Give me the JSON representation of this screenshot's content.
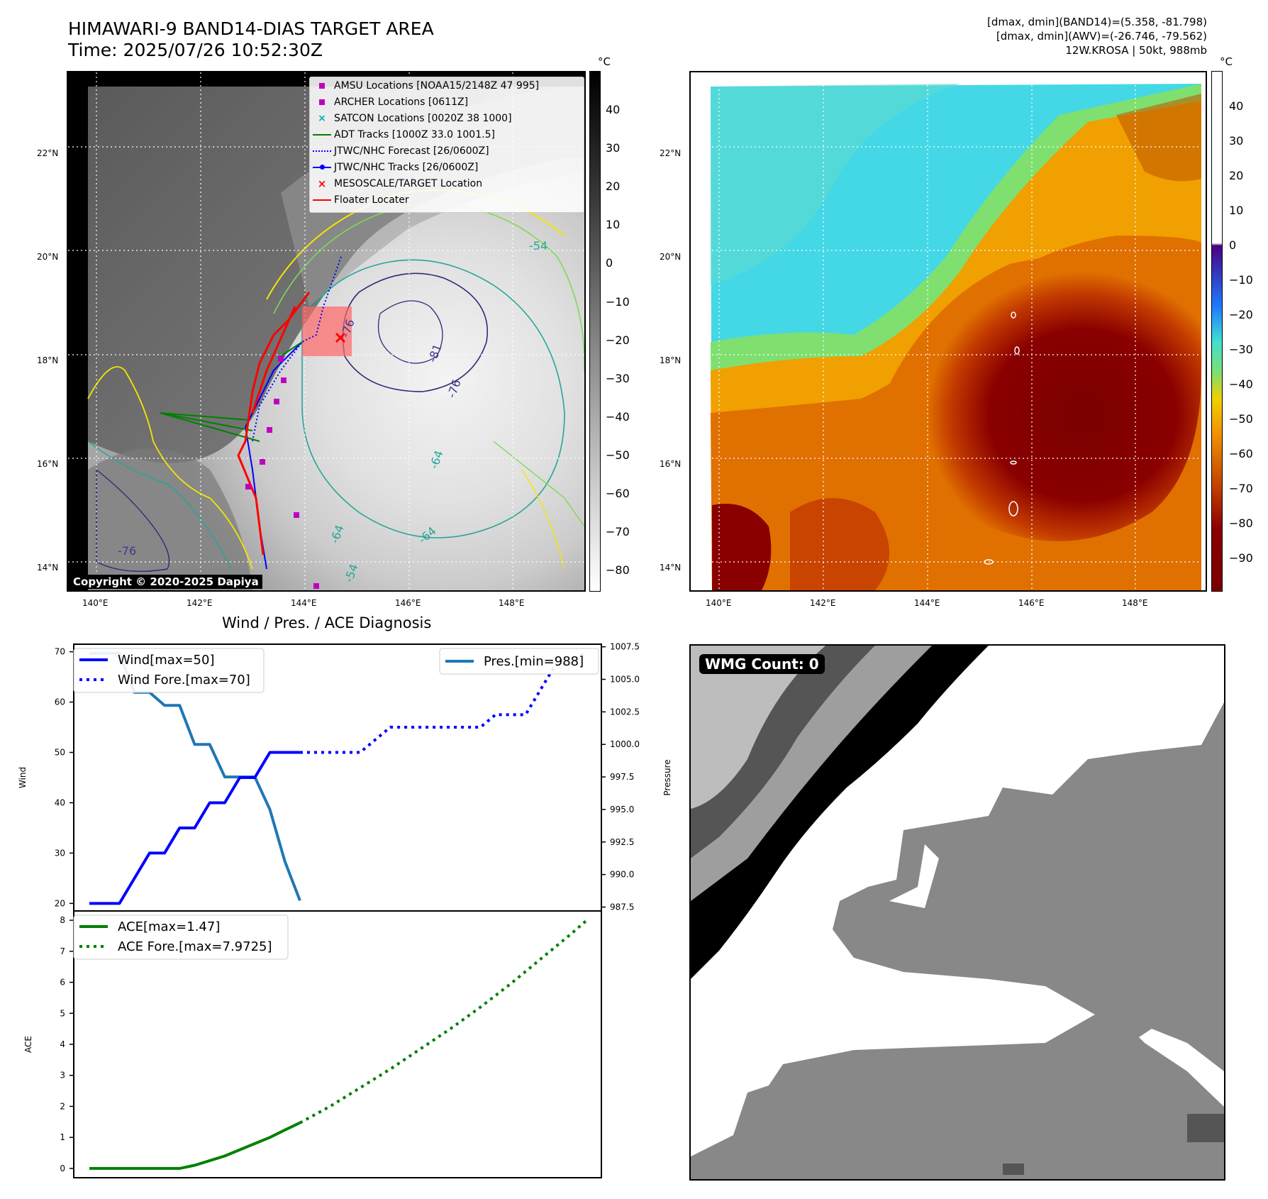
{
  "header": {
    "title_line1": "HIMAWARI-9 BAND14-DIAS TARGET AREA",
    "title_line2": "Time: 2025/07/26 10:52:30Z",
    "info_line1": "[dmax, dmin](BAND14)=(5.358, -81.798)",
    "info_line2": "[dmax, dmin](AWV)=(-26.746, -79.562)",
    "info_line3": "12W.KROSA | 50kt, 988mb"
  },
  "map_left": {
    "lat_labels": [
      "22°N",
      "20°N",
      "18°N",
      "16°N",
      "14°N"
    ],
    "lon_labels": [
      "140°E",
      "142°E",
      "144°E",
      "146°E",
      "148°E"
    ],
    "contour_labels": [
      "-54",
      "-76",
      "-81",
      "-76",
      "-64",
      "-64",
      "-64",
      "-54",
      "-76"
    ],
    "copyright": "Copyright © 2020-2025 Dapiya",
    "legend": [
      {
        "label": "AMSU Locations [NOAA15/2148Z 47 995]",
        "symbol": "square",
        "color": "#c000c0"
      },
      {
        "label": "ARCHER Locations [0611Z]",
        "symbol": "square",
        "color": "#c000c0"
      },
      {
        "label": "SATCON Locations [0020Z 38 1000]",
        "symbol": "x",
        "color": "#00b0b0"
      },
      {
        "label": "ADT Tracks [1000Z 33.0 1001.5]",
        "symbol": "line",
        "color": "#008000"
      },
      {
        "label": "JTWC/NHC Forecast [26/0600Z]",
        "symbol": "dotted",
        "color": "#0000ff"
      },
      {
        "label": "JTWC/NHC Tracks [26/0600Z]",
        "symbol": "line-dot",
        "color": "#0000ff"
      },
      {
        "label": "MESOSCALE/TARGET Location",
        "symbol": "x",
        "color": "#ff0000"
      },
      {
        "label": "Floater Locater",
        "symbol": "line",
        "color": "#ff0000"
      }
    ],
    "colorbar_unit": "°C",
    "colorbar_ticks": [
      "40",
      "30",
      "20",
      "10",
      "0",
      "−10",
      "−20",
      "−30",
      "−40",
      "−50",
      "−60",
      "−70",
      "−80"
    ]
  },
  "map_right": {
    "lat_labels": [
      "22°N",
      "20°N",
      "18°N",
      "16°N",
      "14°N"
    ],
    "lon_labels": [
      "140°E",
      "142°E",
      "144°E",
      "146°E",
      "148°E"
    ],
    "colorbar_unit": "°C",
    "colorbar_ticks": [
      "40",
      "30",
      "20",
      "10",
      "0",
      "−10",
      "−20",
      "−30",
      "−40",
      "−50",
      "−60",
      "−70",
      "−80",
      "−90"
    ]
  },
  "wmg": {
    "badge": "WMG Count: 0"
  },
  "chart_data": [
    {
      "type": "line",
      "title": "Wind / Pres. / ACE Diagnosis",
      "ylabel": "Wind",
      "y2label": "Pressure",
      "ylim": [
        18.5,
        71.5
      ],
      "y2lim": [
        987.2,
        1007.7
      ],
      "yticks": [
        "70",
        "60",
        "50",
        "40",
        "30",
        "20"
      ],
      "y2ticks": [
        "1007.5",
        "1005.0",
        "1002.5",
        "1000.0",
        "997.5",
        "995.0",
        "992.5",
        "990.0",
        "987.5"
      ],
      "series": [
        {
          "name": "Wind[max=50]",
          "axis": "left",
          "style": "solid",
          "color": "#0000ff",
          "x": [
            0,
            1,
            2,
            3,
            4,
            5,
            6,
            7,
            8,
            9,
            10,
            11,
            12,
            13,
            14
          ],
          "values": [
            20,
            20,
            20,
            25,
            30,
            30,
            35,
            35,
            40,
            40,
            45,
            45,
            50,
            50,
            50
          ]
        },
        {
          "name": "Wind Fore.[max=70]",
          "axis": "left",
          "style": "dotted",
          "color": "#0000ff",
          "x": [
            14,
            15,
            16,
            17,
            18,
            19,
            20,
            21,
            22,
            23,
            24,
            25,
            26,
            27,
            28,
            29,
            30,
            31,
            32,
            33
          ],
          "values": [
            50,
            50,
            50,
            50,
            50,
            52.5,
            55,
            55,
            55,
            55,
            55,
            55,
            55,
            57.5,
            57.5,
            57.5,
            62.5,
            67.5,
            67.5,
            70
          ]
        },
        {
          "name": "Pres.[min=988]",
          "axis": "right",
          "style": "solid",
          "color": "#1f77b4",
          "x": [
            0,
            1,
            2,
            3,
            4,
            5,
            6,
            7,
            8,
            9,
            10,
            11,
            12,
            13,
            14
          ],
          "values": [
            1007,
            1007,
            1007,
            1004,
            1004,
            1003,
            1003,
            1000,
            1000,
            997.5,
            997.5,
            997.5,
            995,
            991,
            988
          ]
        }
      ]
    },
    {
      "type": "line",
      "ylabel": "ACE",
      "ylim": [
        -0.3,
        8.3
      ],
      "yticks": [
        "8",
        "7",
        "6",
        "5",
        "4",
        "3",
        "2",
        "1",
        "0"
      ],
      "series": [
        {
          "name": "ACE[max=1.47]",
          "style": "solid",
          "color": "#008000",
          "x": [
            0,
            1,
            2,
            3,
            4,
            5,
            6,
            7,
            8,
            9,
            10,
            11,
            12,
            13,
            14
          ],
          "values": [
            0,
            0,
            0,
            0,
            0,
            0,
            0,
            0.1,
            0.25,
            0.4,
            0.6,
            0.8,
            1.0,
            1.24,
            1.47
          ]
        },
        {
          "name": "ACE Fore.[max=7.9725]",
          "style": "dotted",
          "color": "#008000",
          "x": [
            14,
            16,
            18,
            20,
            22,
            24,
            26,
            28,
            30,
            32,
            33
          ],
          "values": [
            1.47,
            2.0,
            2.6,
            3.2,
            3.85,
            4.5,
            5.2,
            5.95,
            6.75,
            7.55,
            7.9725
          ]
        }
      ]
    }
  ]
}
